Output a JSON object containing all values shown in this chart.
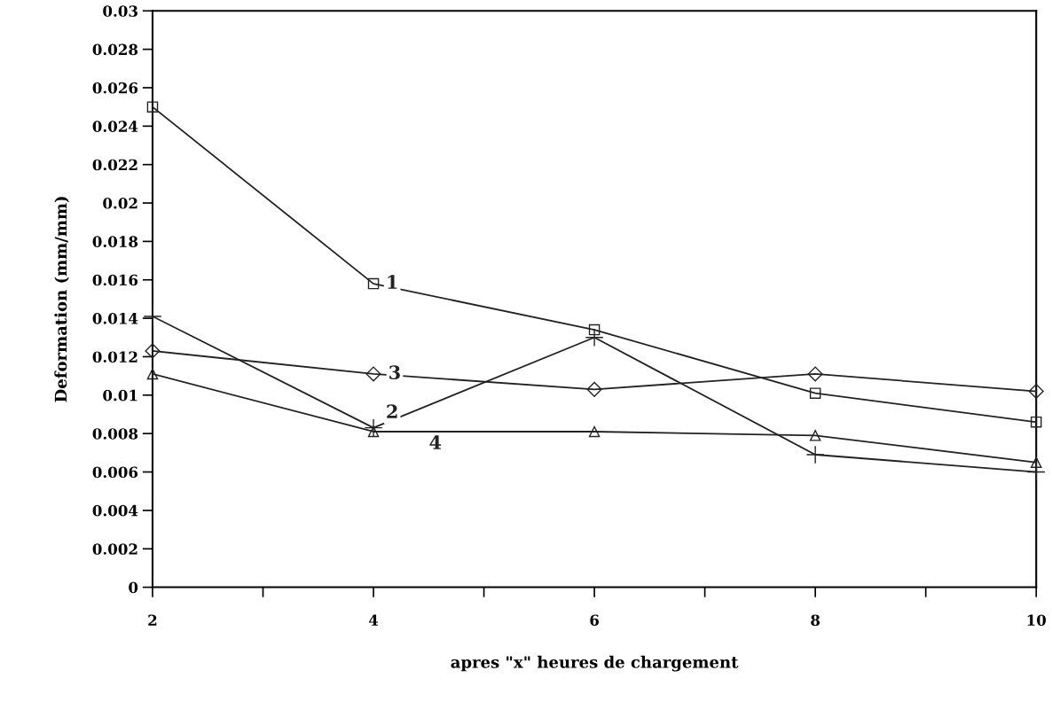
{
  "chart_data": {
    "type": "line",
    "xlabel": "apres \"x\" heures de chargement",
    "ylabel": "Deformation (mm/mm)",
    "x": [
      2,
      4,
      6,
      8,
      10
    ],
    "series": [
      {
        "name": "1",
        "color": "#222222",
        "marker": "square",
        "values": [
          0.025,
          0.0158,
          0.0134,
          0.0101,
          0.0086
        ]
      },
      {
        "name": "2",
        "color": "#222222",
        "marker": "cross",
        "values": [
          0.0141,
          0.0083,
          0.013,
          0.0069,
          0.006
        ]
      },
      {
        "name": "3",
        "color": "#222222",
        "marker": "diamond",
        "values": [
          0.0123,
          0.0111,
          0.0103,
          0.0111,
          0.0102
        ]
      },
      {
        "name": "4",
        "color": "#222222",
        "marker": "triangle",
        "values": [
          0.0111,
          0.0081,
          0.0081,
          0.0079,
          0.0065
        ]
      }
    ],
    "xlim": [
      2,
      10
    ],
    "xticks": [
      2,
      {
        "value": 3,
        "label": null
      },
      4,
      {
        "value": 5,
        "label": null
      },
      6,
      {
        "value": 7,
        "label": null
      },
      8,
      {
        "value": 9,
        "label": null
      },
      10
    ],
    "ylim": [
      0,
      0.03
    ],
    "yticks": [
      0,
      0.002,
      0.004,
      0.006,
      0.008,
      0.01,
      0.012,
      0.014,
      0.016,
      0.018,
      0.02,
      0.022,
      0.024,
      0.026,
      0.028,
      0.03
    ],
    "grid": false,
    "legend": false,
    "line_style": "solid"
  }
}
